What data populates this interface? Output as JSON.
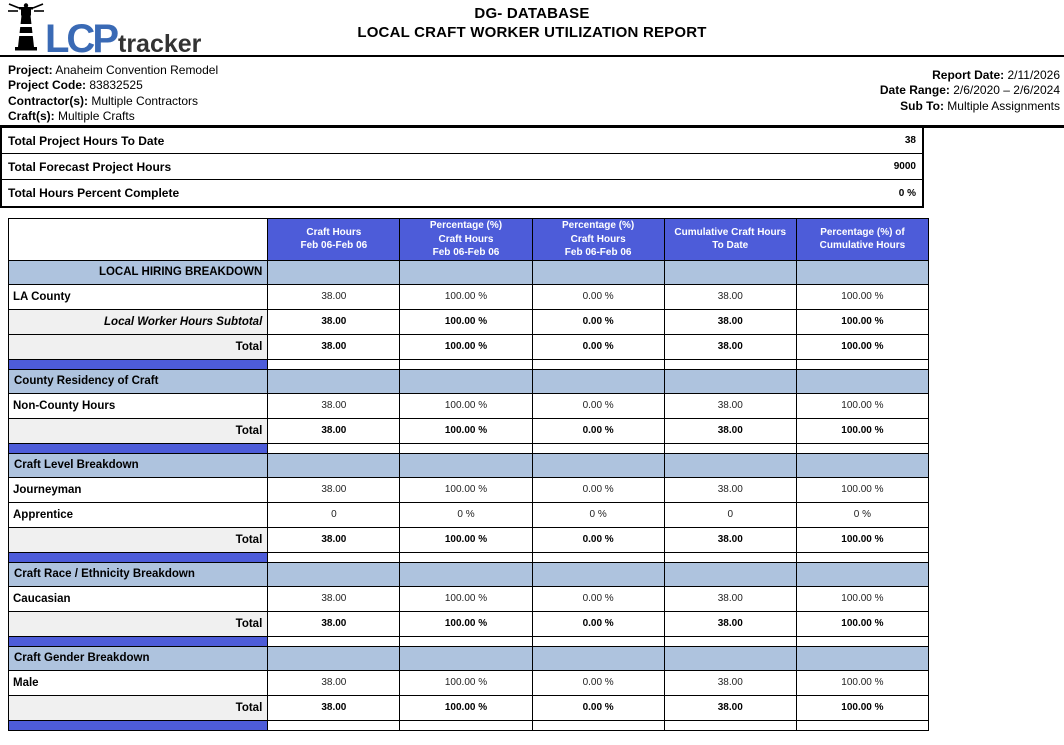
{
  "colors": {
    "accent_blue": "#4d5cd9",
    "section_blue": "#aec3de",
    "subtotal_gray": "#f0f0f0",
    "logo_blue": "#3a6ab5",
    "logo_dark": "#333333"
  },
  "masthead": {
    "logo_lcp": "LCP",
    "logo_tracker": "tracker",
    "title_line1": "DG- DATABASE",
    "title_line2": "LOCAL CRAFT WORKER UTILIZATION REPORT"
  },
  "info": {
    "left": [
      {
        "label": "Project:",
        "value": "Anaheim Convention Remodel"
      },
      {
        "label": "Project Code:",
        "value": "83832525"
      },
      {
        "label": "Contractor(s):",
        "value": "Multiple Contractors"
      },
      {
        "label": "Craft(s):",
        "value": "Multiple Crafts"
      }
    ],
    "right": [
      {
        "label": "Report Date:",
        "value": "2/11/2026"
      },
      {
        "label": "Date Range:",
        "value": "2/6/2020 – 2/6/2024"
      },
      {
        "label": "Sub To:",
        "value": "Multiple Assignments"
      }
    ]
  },
  "summary": {
    "rows": [
      {
        "label": "Total Project Hours To Date",
        "value": "38"
      },
      {
        "label": "Total Forecast Project Hours",
        "value": "9000"
      },
      {
        "label": "Total Hours Percent Complete",
        "value": "0 %"
      }
    ]
  },
  "table": {
    "columns": [
      "Craft Hours\nFeb 06-Feb 06",
      "Percentage (%)\nCraft Hours\nFeb 06-Feb 06",
      "Percentage (%)\nCraft Hours\nFeb 06-Feb 06",
      "Cumulative Craft Hours\nTo Date",
      "Percentage (%) of\nCumulative Hours"
    ],
    "rows": [
      {
        "type": "section",
        "label": "LOCAL HIRING BREAKDOWN",
        "align": "right"
      },
      {
        "type": "data",
        "label": "LA County",
        "values": [
          "38.00",
          "100.00 %",
          "0.00 %",
          "38.00",
          "100.00 %"
        ]
      },
      {
        "type": "subtotal",
        "label": "Local Worker Hours Subtotal",
        "values": [
          "38.00",
          "100.00 %",
          "0.00 %",
          "38.00",
          "100.00 %"
        ]
      },
      {
        "type": "total",
        "label": "Total",
        "values": [
          "38.00",
          "100.00 %",
          "0.00 %",
          "38.00",
          "100.00 %"
        ]
      },
      {
        "type": "separator"
      },
      {
        "type": "section",
        "label": "County Residency of Craft",
        "align": "left"
      },
      {
        "type": "data",
        "label": "Non-County Hours",
        "values": [
          "38.00",
          "100.00 %",
          "0.00 %",
          "38.00",
          "100.00 %"
        ]
      },
      {
        "type": "total",
        "label": "Total",
        "values": [
          "38.00",
          "100.00 %",
          "0.00 %",
          "38.00",
          "100.00 %"
        ]
      },
      {
        "type": "separator"
      },
      {
        "type": "section",
        "label": "Craft Level Breakdown",
        "align": "left"
      },
      {
        "type": "data",
        "label": "Journeyman",
        "values": [
          "38.00",
          "100.00 %",
          "0.00 %",
          "38.00",
          "100.00 %"
        ]
      },
      {
        "type": "data",
        "label": "Apprentice",
        "values": [
          "0",
          "0 %",
          "0 %",
          "0",
          "0 %"
        ]
      },
      {
        "type": "total",
        "label": "Total",
        "values": [
          "38.00",
          "100.00 %",
          "0.00 %",
          "38.00",
          "100.00 %"
        ]
      },
      {
        "type": "separator"
      },
      {
        "type": "section",
        "label": "Craft Race / Ethnicity Breakdown",
        "align": "left"
      },
      {
        "type": "data",
        "label": "Caucasian",
        "values": [
          "38.00",
          "100.00 %",
          "0.00 %",
          "38.00",
          "100.00 %"
        ]
      },
      {
        "type": "total",
        "label": "Total",
        "values": [
          "38.00",
          "100.00 %",
          "0.00 %",
          "38.00",
          "100.00 %"
        ]
      },
      {
        "type": "separator"
      },
      {
        "type": "section",
        "label": "Craft Gender Breakdown",
        "align": "left"
      },
      {
        "type": "data",
        "label": "Male",
        "values": [
          "38.00",
          "100.00 %",
          "0.00 %",
          "38.00",
          "100.00 %"
        ]
      },
      {
        "type": "total",
        "label": "Total",
        "values": [
          "38.00",
          "100.00 %",
          "0.00 %",
          "38.00",
          "100.00 %"
        ]
      },
      {
        "type": "separator"
      }
    ]
  }
}
